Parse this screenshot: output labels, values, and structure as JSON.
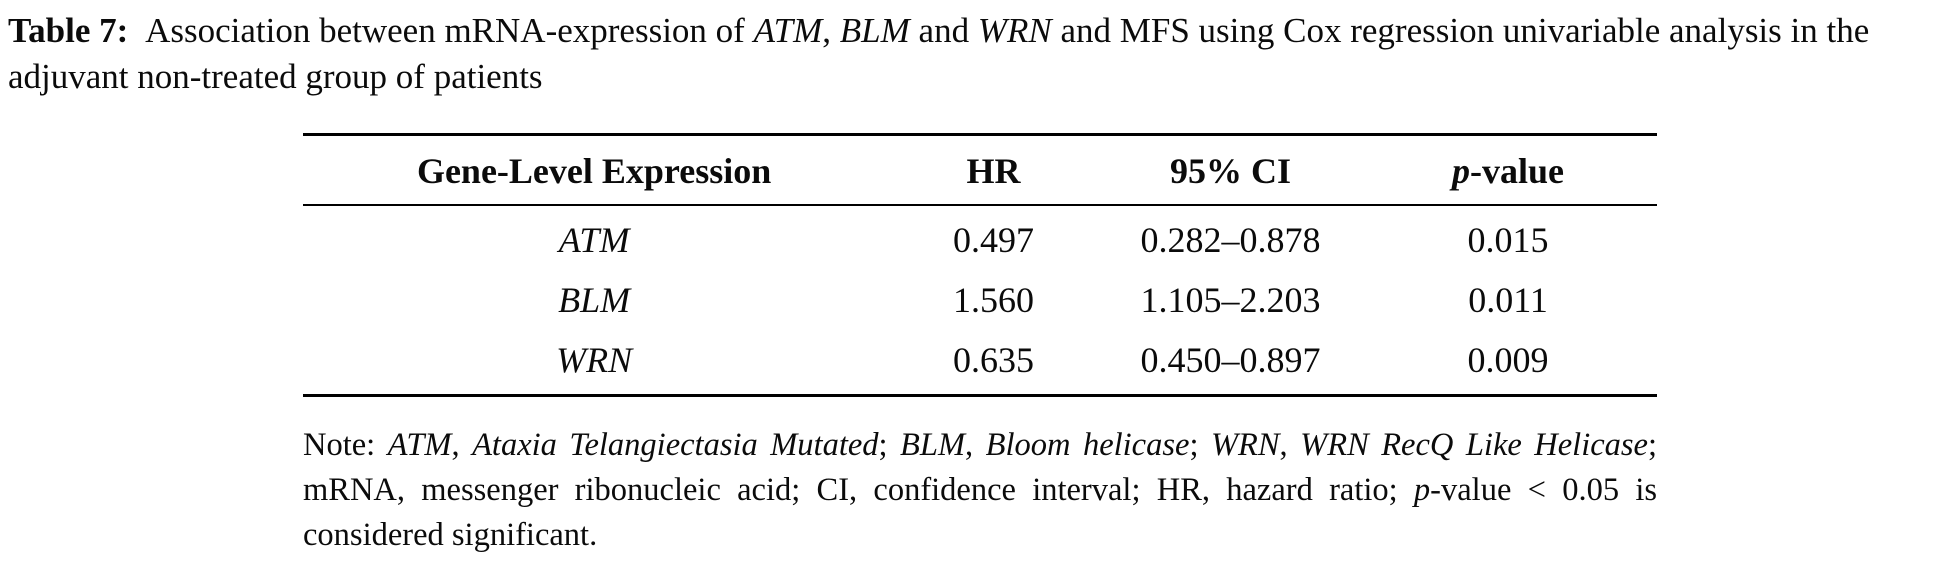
{
  "colors": {
    "background": "#ffffff",
    "text": "#000000",
    "rule": "#000000"
  },
  "caption": {
    "segments": [
      {
        "text": "Table 7:",
        "style": "bold"
      },
      {
        "text": " Association between mRNA-expression of ",
        "style": "regular"
      },
      {
        "text": "ATM",
        "style": "italic"
      },
      {
        "text": ", ",
        "style": "regular"
      },
      {
        "text": "BLM",
        "style": "italic"
      },
      {
        "text": " and ",
        "style": "regular"
      },
      {
        "text": "WRN",
        "style": "italic"
      },
      {
        "text": " and MFS using Cox regression univariable analysis in the adjuvant non-treated group of patients",
        "style": "regular"
      }
    ]
  },
  "table": {
    "headers": [
      "Gene-Level Expression",
      "HR",
      "95% CI",
      "p-value"
    ],
    "p_value_header": {
      "italic": "p",
      "rest": "-value"
    },
    "rows": [
      {
        "gene": "ATM",
        "hr": "0.497",
        "ci": "0.282–0.878",
        "p": "0.015"
      },
      {
        "gene": "BLM",
        "hr": "1.560",
        "ci": "1.105–2.203",
        "p": "0.011"
      },
      {
        "gene": "WRN",
        "hr": "0.635",
        "ci": "0.450–0.897",
        "p": "0.009"
      }
    ]
  },
  "note": {
    "segments": [
      {
        "text": "Note: ",
        "style": "regular"
      },
      {
        "text": "ATM",
        "style": "italic"
      },
      {
        "text": ", ",
        "style": "regular"
      },
      {
        "text": "Ataxia Telangiectasia Mutated",
        "style": "italic"
      },
      {
        "text": "; ",
        "style": "regular"
      },
      {
        "text": "BLM",
        "style": "italic"
      },
      {
        "text": ", ",
        "style": "regular"
      },
      {
        "text": "Bloom helicase",
        "style": "italic"
      },
      {
        "text": "; ",
        "style": "regular"
      },
      {
        "text": "WRN",
        "style": "italic"
      },
      {
        "text": ", ",
        "style": "regular"
      },
      {
        "text": "WRN RecQ Like Helicase",
        "style": "italic"
      },
      {
        "text": "; mRNA, messenger ribonucleic acid; CI, confidence interval; HR, hazard ratio; ",
        "style": "regular"
      },
      {
        "text": "p",
        "style": "italic"
      },
      {
        "text": "-value < 0.05 is considered significant.",
        "style": "regular"
      }
    ]
  }
}
